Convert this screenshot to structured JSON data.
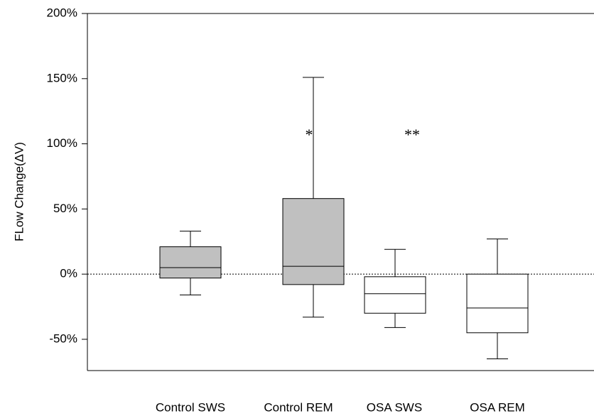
{
  "chart_data": {
    "type": "box",
    "y_label": "FLow Change(ΔV)",
    "categories": [
      "Control SWS",
      "Control REM",
      "OSA SWS",
      "OSA REM"
    ],
    "colors": [
      "#c0c0c0",
      "#c0c0c0",
      "#ffffff",
      "#ffffff"
    ],
    "whisker_low": [
      -16,
      -33,
      -41,
      -65
    ],
    "q1": [
      -3,
      -8,
      -30,
      -45
    ],
    "median": [
      5,
      6,
      -15,
      -26
    ],
    "q3": [
      21,
      58,
      -2,
      0
    ],
    "whisker_high": [
      33,
      151,
      19,
      27
    ],
    "reference_line": 0,
    "annotations": [
      "*",
      "**"
    ],
    "ylim": [
      -74,
      200
    ],
    "yticks": [
      {
        "value": -50,
        "label": "-50%"
      },
      {
        "value": 0,
        "label": "0%"
      },
      {
        "value": 50,
        "label": "50%"
      },
      {
        "value": 100,
        "label": "100%"
      },
      {
        "value": 150,
        "label": "150%"
      },
      {
        "value": 200,
        "label": "200%"
      }
    ]
  }
}
